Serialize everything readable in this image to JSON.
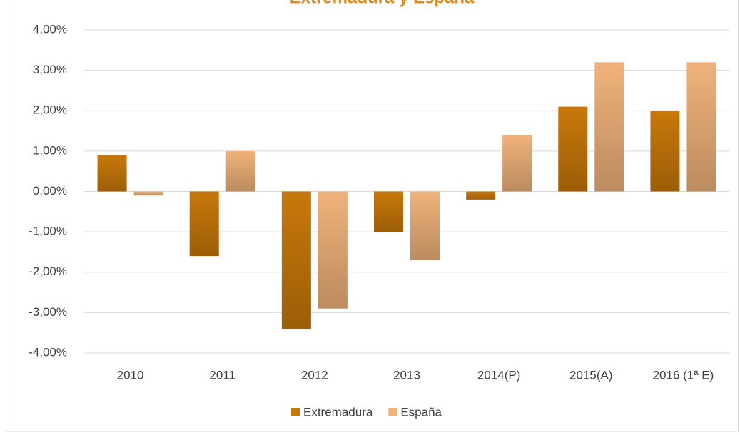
{
  "chart_data": {
    "type": "bar",
    "title": "Extremadura y España",
    "categories": [
      "2010",
      "2011",
      "2012",
      "2013",
      "2014(P)",
      "2015(A)",
      "2016 (1ª E)"
    ],
    "series": [
      {
        "name": "Extremadura",
        "color": "#c8780a",
        "values": [
          0.9,
          -1.6,
          -3.4,
          -1.0,
          -0.2,
          2.1,
          2.0
        ]
      },
      {
        "name": "España",
        "color": "#f0b27a",
        "values": [
          -0.1,
          1.0,
          -2.9,
          -1.7,
          1.4,
          3.2,
          3.2
        ]
      }
    ],
    "ylim": [
      -4,
      4
    ],
    "yticks": [
      {
        "value": -4,
        "label": "-4,00%"
      },
      {
        "value": -3,
        "label": "-3,00%"
      },
      {
        "value": -2,
        "label": "-2,00%"
      },
      {
        "value": -1,
        "label": "-1,00%"
      },
      {
        "value": 0,
        "label": "0,00%"
      },
      {
        "value": 1,
        "label": "1,00%"
      },
      {
        "value": 2,
        "label": "2,00%"
      },
      {
        "value": 3,
        "label": "3,00%"
      },
      {
        "value": 4,
        "label": "4,00%"
      }
    ],
    "grid": true,
    "legend": "bottom"
  }
}
